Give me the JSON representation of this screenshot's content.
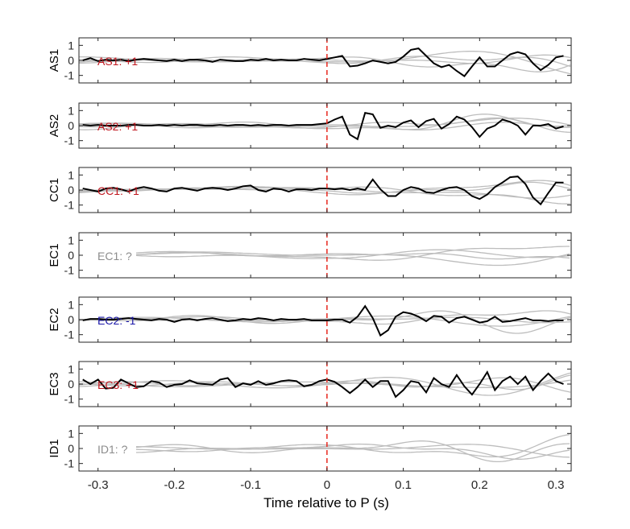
{
  "chart_data": {
    "type": "line",
    "xlabel": "Time relative to P (s)",
    "xlim": [
      -0.325,
      0.32
    ],
    "xticks": [
      -0.3,
      -0.2,
      -0.1,
      0,
      0.1,
      0.2,
      0.3
    ],
    "xtick_labels": [
      "-0.3",
      "-0.2",
      "-0.1",
      "0",
      "0.1",
      "0.2",
      "0.3"
    ],
    "ylim": [
      -1.5,
      1.5
    ],
    "yticks": [
      -1,
      0,
      1
    ],
    "ytick_labels": [
      "-1",
      "0",
      "1"
    ],
    "marker_line": {
      "x": 0,
      "color": "#e8281e",
      "style": "dashed"
    },
    "colors": {
      "trace": "#000000",
      "ghost": "#bdbdbd",
      "pos": "#c0171f",
      "neg": "#1a17a8",
      "unknown": "#8c8c8c"
    },
    "panels": [
      {
        "ylabel": "AS1",
        "annotation": "AS1: +1",
        "polarity": "pos",
        "series": {
          "x": [
            -0.32,
            -0.31,
            -0.3,
            -0.29,
            -0.28,
            -0.27,
            -0.26,
            -0.25,
            -0.24,
            -0.23,
            -0.22,
            -0.21,
            -0.2,
            -0.19,
            -0.18,
            -0.17,
            -0.16,
            -0.15,
            -0.14,
            -0.13,
            -0.12,
            -0.11,
            -0.1,
            -0.09,
            -0.08,
            -0.07,
            -0.06,
            -0.05,
            -0.04,
            -0.03,
            -0.02,
            -0.01,
            0.0,
            0.01,
            0.02,
            0.03,
            0.04,
            0.05,
            0.06,
            0.07,
            0.08,
            0.09,
            0.1,
            0.11,
            0.12,
            0.13,
            0.14,
            0.15,
            0.16,
            0.17,
            0.18,
            0.19,
            0.2,
            0.21,
            0.22,
            0.23,
            0.24,
            0.25,
            0.26,
            0.27,
            0.28,
            0.29,
            0.3,
            0.31
          ],
          "y": [
            0.0,
            0.15,
            -0.05,
            0.05,
            0.0,
            0.05,
            -0.05,
            0.05,
            0.1,
            0.05,
            0.0,
            -0.05,
            0.05,
            -0.05,
            0.05,
            0.05,
            0.0,
            -0.1,
            0.05,
            0.0,
            -0.05,
            -0.05,
            0.05,
            0.0,
            0.1,
            0.0,
            0.05,
            0.0,
            0.0,
            0.1,
            0.05,
            0.0,
            0.1,
            0.2,
            0.3,
            -0.4,
            -0.35,
            -0.2,
            0.0,
            -0.1,
            -0.2,
            -0.1,
            0.25,
            0.7,
            0.8,
            0.3,
            -0.2,
            -0.45,
            -0.3,
            -0.7,
            -1.05,
            -0.4,
            0.2,
            -0.4,
            -0.4,
            0.0,
            0.4,
            0.55,
            0.4,
            -0.2,
            -0.65,
            -0.3,
            0.2,
            0.3
          ]
        }
      },
      {
        "ylabel": "AS2",
        "annotation": "AS2: +1",
        "polarity": "pos",
        "series": {
          "x": [
            -0.32,
            -0.31,
            -0.3,
            -0.29,
            -0.28,
            -0.27,
            -0.26,
            -0.25,
            -0.24,
            -0.23,
            -0.22,
            -0.21,
            -0.2,
            -0.19,
            -0.18,
            -0.17,
            -0.16,
            -0.15,
            -0.14,
            -0.13,
            -0.12,
            -0.11,
            -0.1,
            -0.09,
            -0.08,
            -0.07,
            -0.06,
            -0.05,
            -0.04,
            -0.03,
            -0.02,
            -0.01,
            0.0,
            0.01,
            0.02,
            0.03,
            0.04,
            0.05,
            0.06,
            0.07,
            0.08,
            0.09,
            0.1,
            0.11,
            0.12,
            0.13,
            0.14,
            0.15,
            0.16,
            0.17,
            0.18,
            0.19,
            0.2,
            0.21,
            0.22,
            0.23,
            0.24,
            0.25,
            0.26,
            0.27,
            0.28,
            0.29,
            0.3,
            0.31
          ],
          "y": [
            0.05,
            0.0,
            0.05,
            0.0,
            0.0,
            0.0,
            0.05,
            0.05,
            0.0,
            0.0,
            0.05,
            0.0,
            0.05,
            0.0,
            0.05,
            0.05,
            0.0,
            0.0,
            0.05,
            0.0,
            0.05,
            0.05,
            0.0,
            0.05,
            0.0,
            0.05,
            0.05,
            0.0,
            0.05,
            0.05,
            0.05,
            0.1,
            0.15,
            0.4,
            0.6,
            -0.6,
            -0.9,
            0.85,
            0.75,
            -0.15,
            0.0,
            -0.1,
            0.2,
            0.35,
            -0.1,
            0.3,
            0.45,
            -0.2,
            0.1,
            0.6,
            0.4,
            -0.1,
            -0.75,
            -0.2,
            0.0,
            0.4,
            0.25,
            0.0,
            -0.6,
            0.0,
            0.0,
            0.1,
            -0.2,
            -0.05
          ]
        }
      },
      {
        "ylabel": "CC1",
        "annotation": "CC1: +1",
        "polarity": "pos",
        "series": {
          "x": [
            -0.32,
            -0.31,
            -0.3,
            -0.29,
            -0.28,
            -0.27,
            -0.26,
            -0.25,
            -0.24,
            -0.23,
            -0.22,
            -0.21,
            -0.2,
            -0.19,
            -0.18,
            -0.17,
            -0.16,
            -0.15,
            -0.14,
            -0.13,
            -0.12,
            -0.11,
            -0.1,
            -0.09,
            -0.08,
            -0.07,
            -0.06,
            -0.05,
            -0.04,
            -0.03,
            -0.02,
            -0.01,
            0.0,
            0.01,
            0.02,
            0.03,
            0.04,
            0.05,
            0.06,
            0.07,
            0.08,
            0.09,
            0.1,
            0.11,
            0.12,
            0.13,
            0.14,
            0.15,
            0.16,
            0.17,
            0.18,
            0.19,
            0.2,
            0.21,
            0.22,
            0.23,
            0.24,
            0.25,
            0.26,
            0.27,
            0.28,
            0.29,
            0.3,
            0.31
          ],
          "y": [
            0.1,
            0.0,
            -0.1,
            0.1,
            0.15,
            0.05,
            -0.1,
            0.1,
            0.2,
            0.1,
            -0.05,
            -0.1,
            0.1,
            0.15,
            0.05,
            -0.05,
            0.1,
            0.15,
            0.1,
            0.0,
            0.1,
            0.25,
            0.3,
            0.0,
            -0.1,
            0.1,
            0.05,
            -0.1,
            0.05,
            0.05,
            0.0,
            0.1,
            0.1,
            0.05,
            0.1,
            0.0,
            0.1,
            0.0,
            0.7,
            0.05,
            -0.4,
            -0.4,
            0.0,
            0.2,
            0.1,
            -0.15,
            -0.2,
            0.0,
            0.15,
            0.2,
            0.0,
            -0.4,
            -0.6,
            -0.3,
            0.2,
            0.5,
            0.85,
            0.9,
            0.4,
            -0.5,
            -0.95,
            -0.2,
            0.5,
            0.5
          ]
        }
      },
      {
        "ylabel": "EC1",
        "annotation": "EC1: ?",
        "polarity": "unknown",
        "series": null
      },
      {
        "ylabel": "EC2",
        "annotation": "EC2: -1",
        "polarity": "neg",
        "series": {
          "x": [
            -0.32,
            -0.31,
            -0.3,
            -0.29,
            -0.28,
            -0.27,
            -0.26,
            -0.25,
            -0.24,
            -0.23,
            -0.22,
            -0.21,
            -0.2,
            -0.19,
            -0.18,
            -0.17,
            -0.16,
            -0.15,
            -0.14,
            -0.13,
            -0.12,
            -0.11,
            -0.1,
            -0.09,
            -0.08,
            -0.07,
            -0.06,
            -0.05,
            -0.04,
            -0.03,
            -0.02,
            -0.01,
            0.0,
            0.01,
            0.02,
            0.03,
            0.04,
            0.05,
            0.06,
            0.07,
            0.08,
            0.09,
            0.1,
            0.11,
            0.12,
            0.13,
            0.14,
            0.15,
            0.16,
            0.17,
            0.18,
            0.19,
            0.2,
            0.21,
            0.22,
            0.23,
            0.24,
            0.25,
            0.26,
            0.27,
            0.28,
            0.29,
            0.3,
            0.31
          ],
          "y": [
            -0.05,
            0.05,
            0.05,
            0.0,
            0.0,
            0.05,
            0.1,
            0.05,
            0.0,
            -0.05,
            0.05,
            0.0,
            -0.15,
            0.0,
            0.05,
            -0.05,
            0.05,
            0.1,
            0.0,
            -0.1,
            -0.05,
            0.05,
            0.0,
            0.1,
            0.05,
            -0.05,
            0.05,
            0.0,
            0.0,
            0.05,
            -0.05,
            -0.05,
            -0.05,
            0.0,
            0.0,
            -0.2,
            0.2,
            0.9,
            0.1,
            -1.05,
            -0.7,
            0.2,
            0.5,
            0.4,
            0.2,
            -0.1,
            0.25,
            0.2,
            -0.2,
            0.1,
            0.2,
            0.0,
            -0.2,
            -0.1,
            0.2,
            -0.15,
            -0.1,
            0.0,
            0.1,
            -0.05,
            -0.05,
            -0.1,
            -0.05,
            -0.05
          ]
        }
      },
      {
        "ylabel": "EC3",
        "annotation": "EC3: +1",
        "polarity": "pos",
        "series": {
          "x": [
            -0.32,
            -0.31,
            -0.3,
            -0.29,
            -0.28,
            -0.27,
            -0.26,
            -0.25,
            -0.24,
            -0.23,
            -0.22,
            -0.21,
            -0.2,
            -0.19,
            -0.18,
            -0.17,
            -0.16,
            -0.15,
            -0.14,
            -0.13,
            -0.12,
            -0.11,
            -0.1,
            -0.09,
            -0.08,
            -0.07,
            -0.06,
            -0.05,
            -0.04,
            -0.03,
            -0.02,
            -0.01,
            0.0,
            0.01,
            0.02,
            0.03,
            0.04,
            0.05,
            0.06,
            0.07,
            0.08,
            0.09,
            0.1,
            0.11,
            0.12,
            0.13,
            0.14,
            0.15,
            0.16,
            0.17,
            0.18,
            0.19,
            0.2,
            0.21,
            0.22,
            0.23,
            0.24,
            0.25,
            0.26,
            0.27,
            0.28,
            0.29,
            0.3,
            0.31
          ],
          "y": [
            0.3,
            0.0,
            0.3,
            -0.3,
            -0.25,
            0.3,
            0.05,
            -0.2,
            -0.15,
            0.2,
            0.1,
            -0.2,
            -0.05,
            0.0,
            0.25,
            0.05,
            0.0,
            -0.05,
            0.3,
            0.4,
            -0.2,
            0.05,
            -0.05,
            0.2,
            -0.05,
            0.05,
            0.2,
            0.25,
            0.2,
            -0.15,
            -0.05,
            0.2,
            0.3,
            0.15,
            -0.2,
            -0.6,
            -0.2,
            0.3,
            -0.2,
            0.2,
            0.2,
            -0.85,
            -0.4,
            0.2,
            0.1,
            -0.55,
            0.4,
            0.0,
            -0.2,
            0.6,
            -0.15,
            -0.7,
            0.0,
            0.8,
            -0.4,
            0.2,
            0.5,
            0.0,
            0.5,
            -0.4,
            0.2,
            0.7,
            0.2,
            0.0
          ]
        }
      },
      {
        "ylabel": "ID1",
        "annotation": "ID1: ?",
        "polarity": "unknown",
        "series": null
      }
    ]
  }
}
